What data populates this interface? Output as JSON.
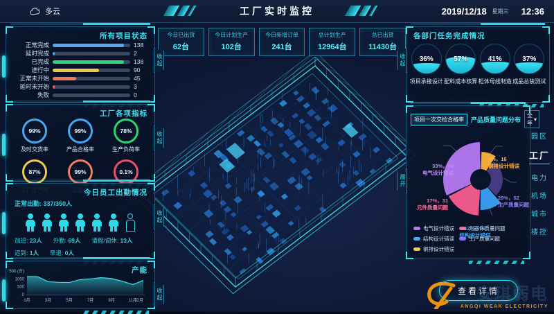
{
  "topbar": {
    "weather": "多云",
    "title": "工厂实时监控",
    "date": "2019/12/18",
    "weekday": "星期三",
    "time": "12:36"
  },
  "stats": [
    {
      "label": "今日已出货",
      "value": "62台"
    },
    {
      "label": "今日计划生产",
      "value": "102台"
    },
    {
      "label": "今日新增订单",
      "value": "241台"
    },
    {
      "label": "总计划生产",
      "value": "12964台"
    },
    {
      "label": "总已出货",
      "value": "11430台"
    }
  ],
  "tabs": {
    "collapse": "收起",
    "expand": "展开"
  },
  "attendance": {
    "title": "今日员工出勤情况",
    "normal_label": "正常出勤:",
    "normal_value": "337/350人",
    "present_icons": 6,
    "absent_icons": 1,
    "rows": [
      [
        {
          "label": "加班:",
          "value": "23人"
        },
        {
          "label": "外勤:",
          "value": "69人"
        },
        {
          "label": "请假/调休:",
          "value": "13人"
        }
      ],
      [
        {
          "label": "迟到:",
          "value": "1人"
        },
        {
          "label": "早退:",
          "value": "0人"
        }
      ]
    ]
  },
  "side_menu": {
    "items": [
      "园区",
      "工厂",
      "电力",
      "机场",
      "城市",
      "楼控"
    ],
    "active": "工厂"
  },
  "detail_button_label": "查看详情",
  "watermark": {
    "cn": "安琪弱电",
    "en": "ANGQI WEAK ELECTRICITY"
  },
  "chart_data": [
    {
      "id": "project_status",
      "type": "bar",
      "title": "所有项目状态",
      "orientation": "horizontal",
      "max": 150,
      "categories": [
        "正常完成",
        "延时完成",
        "已完成",
        "进行中",
        "正常未开始",
        "延时未开始",
        "失败"
      ],
      "values": [
        138,
        2,
        138,
        90,
        45,
        3,
        0
      ],
      "colors": [
        "#5aa7f0",
        "#46b4e8",
        "#2ed573",
        "#f2c94c",
        "#ee7959",
        "#ef5e77",
        "#8a98ad"
      ]
    },
    {
      "id": "factory_metrics",
      "type": "gauge",
      "title": "工厂各项指标",
      "gauges": [
        {
          "value": "99%",
          "label": "及时交货率",
          "color": "#49a8f0"
        },
        {
          "value": "99%",
          "label": "产品合格率",
          "color": "#3fa9f5"
        },
        {
          "value": "78%",
          "label": "生产负荷率",
          "color": "#2ed573"
        },
        {
          "value": "87%",
          "label": "工厂生产率",
          "color": "#f2c94c"
        },
        {
          "value": "99%",
          "label": "出勤率",
          "color": "#ee8063"
        },
        {
          "value": "0.1%",
          "label": "客户投诉率",
          "color": "#ef4f6e"
        }
      ]
    },
    {
      "id": "capacity",
      "type": "area",
      "title": "产能",
      "ylim": [
        0,
        1500
      ],
      "yticks": [
        "1500 (台)",
        "1000",
        "500",
        "0"
      ],
      "ytick_values": [
        1500,
        1000,
        500,
        0
      ],
      "xticks": [
        "1月",
        "3月",
        "5月",
        "7月",
        "9月",
        "11月",
        "12月"
      ],
      "xtick_months": [
        1,
        3,
        5,
        7,
        9,
        11,
        12
      ],
      "months": [
        1,
        2,
        3,
        4,
        5,
        6,
        7,
        8,
        9,
        10,
        11,
        12
      ],
      "values": [
        1150,
        1140,
        820,
        780,
        770,
        950,
        1000,
        1080,
        1020,
        850,
        640,
        900
      ],
      "line_color": "#3ae0ea"
    },
    {
      "id": "department",
      "type": "liquid-gauge",
      "title": "各部门任务完成情况",
      "gauges": [
        {
          "value": 36,
          "label": "项目承接设计"
        },
        {
          "value": 57,
          "label": "配料成本核算"
        },
        {
          "value": 41,
          "label": "柜体母线制造"
        },
        {
          "value": 37,
          "label": "成品总装测试"
        }
      ]
    },
    {
      "id": "quality",
      "type": "rose-pie",
      "tab": "项目一次交检合格率",
      "title": "产品质量问题分布",
      "filter": "全年",
      "slices": [
        {
          "name": "电气设计错误",
          "pct": 33,
          "count": 59,
          "color": "#b678f2",
          "label_color": "#c08bf5"
        },
        {
          "name": "铜排设计错误",
          "pct": 9,
          "count": 16,
          "color": "#ffb03a",
          "label_color": "#ffb649"
        },
        {
          "name": "生产质量问题",
          "pct": 29,
          "count": 52,
          "color": "#4a3c85",
          "label_color": "#8f7df0"
        },
        {
          "name": "结构设计错误",
          "pct": 12,
          "count": 22,
          "color": "#3ba0f5",
          "label_color": "#4aa7f0"
        },
        {
          "name": "元件质量问题",
          "pct": 17,
          "count": 31,
          "color": "#f75d8e",
          "label_color": "#f7719c"
        }
      ],
      "legend": [
        {
          "name": "电气设计错误",
          "color": "#b678f2"
        },
        {
          "name": "元器件质量问题",
          "color": "#f76e9b"
        },
        {
          "name": "结构设计错误",
          "color": "#4aa7f0"
        },
        {
          "name": "生产质量问题",
          "color": "#8f6ff0"
        },
        {
          "name": "铜排设计错误",
          "color": "#f7c948"
        }
      ]
    }
  ]
}
